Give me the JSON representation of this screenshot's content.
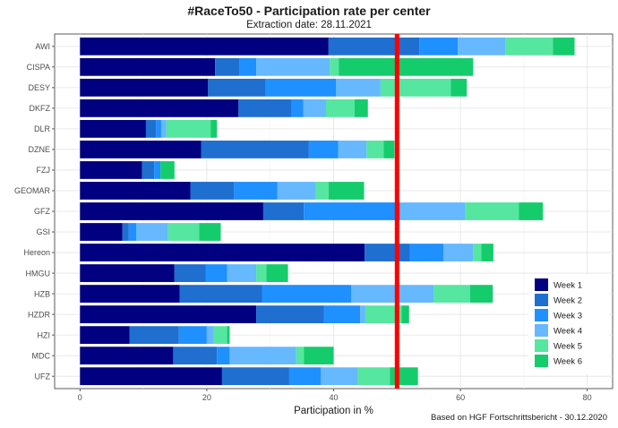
{
  "chart_data": {
    "type": "bar",
    "orientation": "horizontal",
    "stacked": true,
    "title": "#RaceTo50 - Participation rate per center",
    "subtitle": "Extraction date: 28.11.2021",
    "xlabel": "Participation in %",
    "ylabel": "",
    "caption": "Based on HGF Fortschrittsbericht - 30.12.2020",
    "xlim": [
      -4,
      84
    ],
    "xticks": [
      0,
      20,
      40,
      60,
      80
    ],
    "grid": true,
    "legend_position": "right",
    "reference_line": {
      "x": 50,
      "color": "#ff0000"
    },
    "categories": [
      "AWI",
      "CISPA",
      "DESY",
      "DKFZ",
      "DLR",
      "DZNE",
      "FZJ",
      "GEOMAR",
      "GFZ",
      "GSI",
      "Hereon",
      "HMGU",
      "HZB",
      "HZDR",
      "HZI",
      "MDC",
      "UFZ"
    ],
    "series": [
      {
        "name": "Week 1",
        "color": "#000080",
        "values": [
          39.2,
          21.3,
          20.2,
          25.0,
          10.4,
          19.1,
          9.8,
          17.4,
          28.9,
          6.7,
          44.9,
          14.9,
          15.7,
          27.8,
          7.8,
          14.7,
          22.4
        ]
      },
      {
        "name": "Week 2",
        "color": "#1e6fd0",
        "values": [
          14.3,
          3.8,
          9.1,
          8.4,
          1.6,
          17.0,
          1.9,
          6.9,
          6.4,
          1.0,
          7.1,
          4.9,
          13.0,
          10.7,
          7.8,
          6.9,
          10.6
        ]
      },
      {
        "name": "Week 3",
        "color": "#1e90ff",
        "values": [
          6.1,
          2.7,
          11.1,
          1.8,
          0.8,
          4.6,
          1.0,
          6.8,
          15.2,
          1.2,
          5.3,
          3.4,
          14.1,
          5.7,
          4.4,
          2.0,
          5.0
        ]
      },
      {
        "name": "Week 4",
        "color": "#66b8ff",
        "values": [
          7.5,
          11.6,
          7.0,
          3.6,
          0.8,
          4.5,
          0.0,
          6.1,
          10.3,
          5.0,
          4.7,
          4.6,
          13.0,
          0.8,
          1.1,
          10.5,
          5.8
        ]
      },
      {
        "name": "Week 5",
        "color": "#55e6a0",
        "values": [
          7.5,
          1.4,
          11.1,
          4.5,
          7.0,
          2.7,
          0.0,
          2.0,
          8.4,
          4.9,
          1.3,
          1.6,
          5.7,
          5.7,
          2.1,
          1.2,
          5.1
        ]
      },
      {
        "name": "Week 6",
        "color": "#14cc6b",
        "values": [
          3.4,
          21.2,
          2.5,
          2.1,
          1.0,
          1.7,
          2.2,
          5.6,
          3.8,
          3.4,
          1.9,
          3.4,
          3.6,
          1.2,
          0.4,
          4.7,
          4.4
        ]
      }
    ]
  }
}
